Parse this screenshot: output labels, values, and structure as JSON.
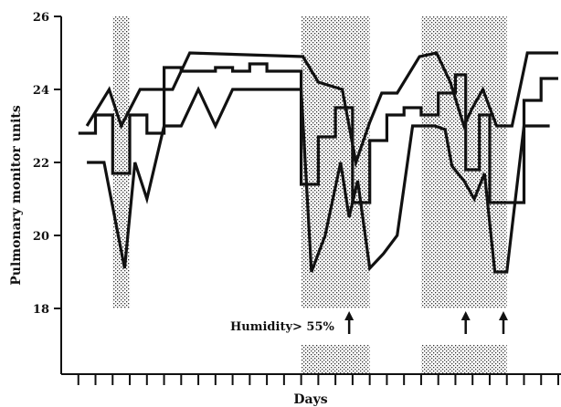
{
  "chart_data": {
    "type": "line",
    "title": "",
    "xlabel": "Days",
    "ylabel": "Pulmonary monitor units",
    "ylim": [
      16.2,
      26
    ],
    "yticks": [
      18,
      20,
      22,
      24,
      26
    ],
    "xlim": [
      0,
      29
    ],
    "xticks": [
      1,
      2,
      3,
      4,
      5,
      6,
      7,
      8,
      9,
      10,
      11,
      12,
      13,
      14,
      15,
      16,
      17,
      18,
      19,
      20,
      21,
      22,
      23,
      24,
      25,
      26,
      27,
      28,
      29
    ],
    "grid": false,
    "legend": "none",
    "annotation": {
      "text": "Humidity> 55%",
      "arrows_at_x": [
        16.8,
        23.6,
        25.8
      ]
    },
    "shaded_periods": [
      {
        "x": [
          3,
          4
        ],
        "y": [
          18,
          26
        ]
      },
      {
        "x": [
          14,
          18
        ],
        "y": [
          18,
          26
        ]
      },
      {
        "x": [
          14,
          18
        ],
        "y": [
          16.2,
          17
        ]
      },
      {
        "x": [
          21,
          26
        ],
        "y": [
          18,
          26
        ]
      },
      {
        "x": [
          21,
          26
        ],
        "y": [
          16.2,
          17
        ]
      }
    ],
    "series": [
      {
        "values": [
          [
            1.5,
            23.0
          ],
          [
            2.8,
            24.0
          ],
          [
            3.5,
            23.0
          ],
          [
            4.6,
            24.0
          ],
          [
            6.5,
            24.0
          ],
          [
            7.5,
            25.0
          ],
          [
            14.1,
            24.9
          ],
          [
            15,
            24.2
          ],
          [
            16.4,
            24.0
          ],
          [
            17.2,
            22.0
          ],
          [
            18,
            23.1
          ],
          [
            18.7,
            23.9
          ],
          [
            19.6,
            23.9
          ],
          [
            20.9,
            24.9
          ],
          [
            21.9,
            25.0
          ],
          [
            22.7,
            24.2
          ],
          [
            23.5,
            23.0
          ],
          [
            24.0,
            23.5
          ],
          [
            24.6,
            24.0
          ],
          [
            25.4,
            23.0
          ],
          [
            26.3,
            23.0
          ],
          [
            27.2,
            25.0
          ],
          [
            29,
            25.0
          ]
        ]
      },
      {
        "values": [
          [
            1,
            22.8
          ],
          [
            2,
            22.8
          ],
          [
            2,
            23.3
          ],
          [
            3,
            23.3
          ],
          [
            3,
            21.7
          ],
          [
            4,
            21.7
          ],
          [
            4,
            23.3
          ],
          [
            5,
            23.3
          ],
          [
            5,
            22.8
          ],
          [
            6,
            22.8
          ],
          [
            6,
            24.6
          ],
          [
            7,
            24.6
          ],
          [
            7,
            24.5
          ],
          [
            9,
            24.5
          ],
          [
            9,
            24.6
          ],
          [
            10,
            24.6
          ],
          [
            10,
            24.5
          ],
          [
            11,
            24.5
          ],
          [
            11,
            24.7
          ],
          [
            12,
            24.7
          ],
          [
            12,
            24.5
          ],
          [
            13,
            24.5
          ],
          [
            14,
            24.5
          ],
          [
            14,
            21.4
          ],
          [
            15,
            21.4
          ],
          [
            15,
            22.7
          ],
          [
            16,
            22.7
          ],
          [
            16,
            23.5
          ],
          [
            17,
            23.5
          ],
          [
            17,
            20.9
          ],
          [
            18,
            20.9
          ],
          [
            18,
            22.6
          ],
          [
            19,
            22.6
          ],
          [
            19,
            23.3
          ],
          [
            20,
            23.3
          ],
          [
            20,
            23.5
          ],
          [
            21,
            23.5
          ],
          [
            21,
            23.3
          ],
          [
            22,
            23.3
          ],
          [
            22,
            23.9
          ],
          [
            23,
            23.9
          ],
          [
            23,
            24.4
          ],
          [
            23.6,
            24.4
          ],
          [
            23.6,
            21.8
          ],
          [
            24.4,
            21.8
          ],
          [
            24.4,
            23.3
          ],
          [
            25,
            23.3
          ],
          [
            25,
            20.9
          ],
          [
            26,
            20.9
          ],
          [
            26,
            20.9
          ],
          [
            27,
            20.9
          ],
          [
            27,
            23.7
          ],
          [
            28,
            23.7
          ],
          [
            28,
            24.3
          ],
          [
            29,
            24.3
          ]
        ]
      },
      {
        "values": [
          [
            1.5,
            22.0
          ],
          [
            2.5,
            22.0
          ],
          [
            3.7,
            19.1
          ],
          [
            4.3,
            22.0
          ],
          [
            5,
            21.0
          ],
          [
            6,
            23.0
          ],
          [
            7,
            23.0
          ],
          [
            8,
            24.0
          ],
          [
            9,
            23.0
          ],
          [
            10,
            24.0
          ],
          [
            13.5,
            24.0
          ],
          [
            14,
            24.0
          ],
          [
            14.6,
            19.0
          ],
          [
            15.4,
            20.0
          ],
          [
            16.3,
            22.0
          ],
          [
            16.8,
            20.5
          ],
          [
            17.3,
            21.5
          ],
          [
            18,
            19.1
          ],
          [
            18.8,
            19.5
          ],
          [
            19.6,
            20.0
          ],
          [
            20.5,
            23.0
          ],
          [
            21.8,
            23.0
          ],
          [
            22.4,
            22.9
          ],
          [
            22.8,
            21.9
          ],
          [
            23.5,
            21.5
          ],
          [
            24.1,
            21.0
          ],
          [
            24.7,
            21.7
          ],
          [
            25.3,
            19.0
          ],
          [
            26,
            19.0
          ],
          [
            27,
            23.0
          ],
          [
            28.5,
            23.0
          ]
        ]
      }
    ]
  }
}
